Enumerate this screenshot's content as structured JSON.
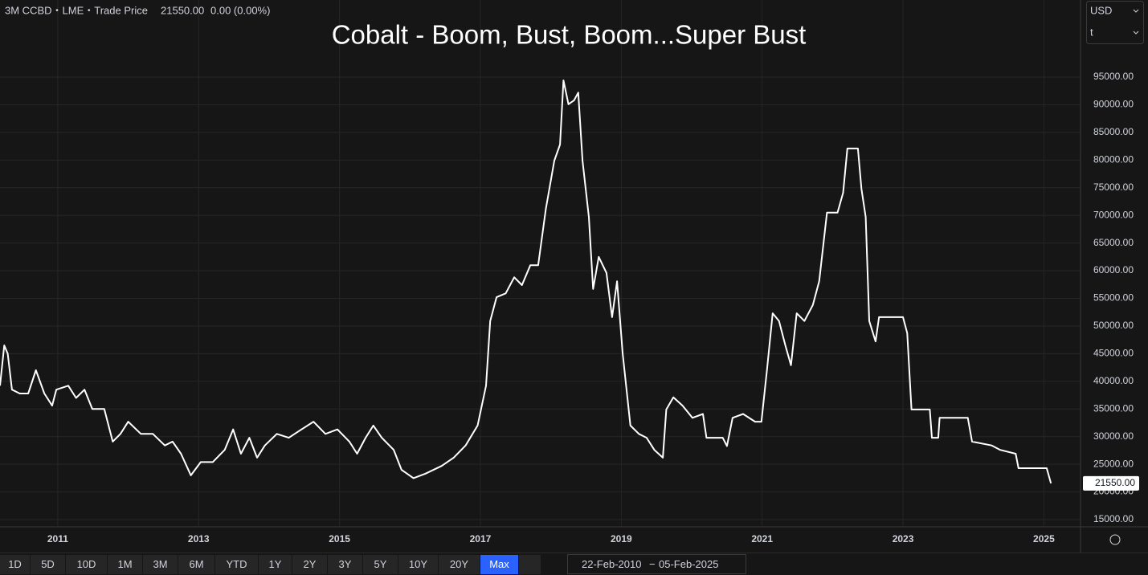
{
  "header": {
    "symbol": "3M CCBD・LME・Trade Price",
    "change": "0.00 (0.00%)"
  },
  "chart_data": {
    "type": "line",
    "title": "Cobalt - Boom, Bust, Boom...Super Bust",
    "x": [
      2010.18,
      2010.24,
      2010.29,
      2010.35,
      2010.46,
      2010.58,
      2010.69,
      2010.81,
      2010.92,
      2010.98,
      2011.15,
      2011.26,
      2011.38,
      2011.49,
      2011.66,
      2011.78,
      2011.89,
      2012.0,
      2012.18,
      2012.35,
      2012.52,
      2012.63,
      2012.75,
      2012.89,
      2013.03,
      2013.2,
      2013.37,
      2013.49,
      2013.6,
      2013.72,
      2013.83,
      2013.94,
      2014.11,
      2014.28,
      2014.46,
      2014.63,
      2014.8,
      2014.97,
      2015.14,
      2015.25,
      2015.37,
      2015.48,
      2015.6,
      2015.77,
      2015.88,
      2016.05,
      2016.22,
      2016.45,
      2016.62,
      2016.79,
      2016.96,
      2017.08,
      2017.14,
      2017.23,
      2017.36,
      2017.48,
      2017.59,
      2017.71,
      2017.82,
      2017.93,
      2018.05,
      2018.13,
      2018.18,
      2018.25,
      2018.33,
      2018.39,
      2018.45,
      2018.54,
      2018.6,
      2018.68,
      2018.79,
      2018.87,
      2018.94,
      2019.02,
      2019.13,
      2019.25,
      2019.36,
      2019.47,
      2019.59,
      2019.64,
      2019.74,
      2019.87,
      2020.01,
      2020.16,
      2020.21,
      2020.44,
      2020.5,
      2020.58,
      2020.73,
      2020.9,
      2020.99,
      2021.07,
      2021.15,
      2021.24,
      2021.33,
      2021.41,
      2021.49,
      2021.6,
      2021.72,
      2021.81,
      2021.92,
      2022.07,
      2022.15,
      2022.21,
      2022.36,
      2022.41,
      2022.47,
      2022.52,
      2022.61,
      2022.66,
      2022.84,
      2023.0,
      2023.06,
      2023.12,
      2023.23,
      2023.38,
      2023.41,
      2023.5,
      2023.52,
      2023.92,
      2023.98,
      2024.26,
      2024.38,
      2024.6,
      2024.64,
      2025.04,
      2025.1
    ],
    "series": [
      {
        "name": "3M CCBD",
        "color": "#ffffff",
        "values": [
          39200,
          46500,
          45000,
          38500,
          37800,
          37800,
          42000,
          37800,
          35600,
          38500,
          39200,
          37000,
          38500,
          35000,
          35000,
          29100,
          30500,
          32700,
          30500,
          30500,
          28400,
          29100,
          26900,
          23000,
          25400,
          25400,
          27600,
          31300,
          26900,
          29800,
          26200,
          28400,
          30500,
          29800,
          31300,
          32700,
          30500,
          31300,
          29100,
          26900,
          29800,
          32000,
          29800,
          27600,
          24000,
          22500,
          23300,
          24700,
          26200,
          28400,
          32000,
          39200,
          50900,
          55200,
          55900,
          58800,
          57400,
          61000,
          61000,
          71200,
          79900,
          82800,
          94400,
          90100,
          90800,
          92200,
          79900,
          69700,
          56700,
          62500,
          59600,
          51600,
          58100,
          45000,
          32000,
          30500,
          29800,
          27600,
          26200,
          34900,
          37100,
          35600,
          33400,
          34100,
          29800,
          29800,
          28300,
          33400,
          34100,
          32700,
          32700,
          42200,
          52300,
          50900,
          46500,
          42900,
          52300,
          50900,
          53800,
          58100,
          70500,
          70500,
          74100,
          82100,
          82100,
          74800,
          69700,
          50900,
          47200,
          51600,
          51600,
          51600,
          48700,
          34900,
          34900,
          34900,
          29800,
          29800,
          33400,
          33400,
          29100,
          28400,
          27600,
          26900,
          24300,
          24300,
          21550
        ]
      }
    ],
    "xlim": [
      2010.18,
      2025.52
    ],
    "xticks": [
      2011,
      2013,
      2015,
      2017,
      2019,
      2021,
      2023,
      2025
    ],
    "ylim": [
      13840,
      108940
    ],
    "yticks": [
      {
        "value": 15000,
        "label": "15000.00"
      },
      {
        "value": 20000,
        "label": "20000.00"
      },
      {
        "value": 25000,
        "label": "25000.00"
      },
      {
        "value": 30000,
        "label": "30000.00"
      },
      {
        "value": 35000,
        "label": "35000.00"
      },
      {
        "value": 40000,
        "label": "40000.00"
      },
      {
        "value": 45000,
        "label": "45000.00"
      },
      {
        "value": 50000,
        "label": "50000.00"
      },
      {
        "value": 55000,
        "label": "55000.00"
      },
      {
        "value": 60000,
        "label": "60000.00"
      },
      {
        "value": 65000,
        "label": "65000.00"
      },
      {
        "value": 70000,
        "label": "70000.00"
      },
      {
        "value": 75000,
        "label": "75000.00"
      },
      {
        "value": 80000,
        "label": "80000.00"
      },
      {
        "value": 85000,
        "label": "85000.00"
      },
      {
        "value": 90000,
        "label": "90000.00"
      },
      {
        "value": 95000,
        "label": "95000.00"
      }
    ],
    "last_price": {
      "value": 21550,
      "label": "21550.00"
    },
    "grid": true
  },
  "currency": {
    "unit": "USD",
    "quantity": "t"
  },
  "toolbar": {
    "ranges": [
      "1D",
      "5D",
      "10D",
      "1M",
      "3M",
      "6M",
      "YTD",
      "1Y",
      "2Y",
      "3Y",
      "5Y",
      "10Y",
      "20Y",
      "Max"
    ],
    "active": 13,
    "date_from": "22-Feb-2010",
    "date_separator": "−",
    "date_to": "05-Feb-2025"
  }
}
